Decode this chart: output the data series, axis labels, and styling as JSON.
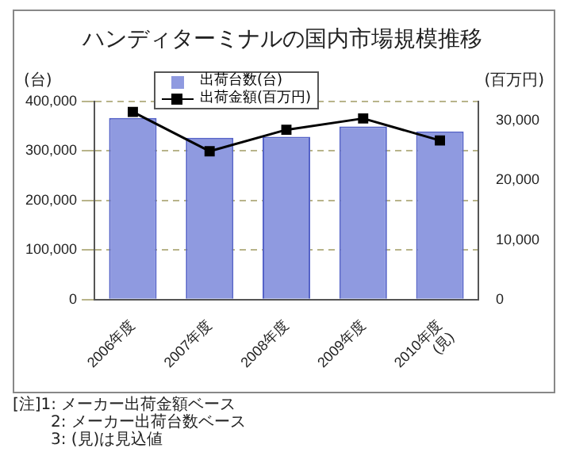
{
  "chart_data": {
    "type": "bar",
    "title": "ハンディターミナルの国内市場規模推移",
    "ylabel": "(台)",
    "y2label": "(百万円)",
    "categories": [
      "2006年度",
      "2007年度",
      "2008年度",
      "2009年度",
      "2010年度\n(見)"
    ],
    "series": [
      {
        "name": "出荷台数(台)",
        "color": "#8f9ae0",
        "values": [
          366000,
          326000,
          328000,
          349000,
          339000
        ]
      },
      {
        "name": "出荷金額(百万円)",
        "type": "line",
        "axis": "y2",
        "color": "#000000",
        "values": [
          31500,
          24900,
          28500,
          30400,
          26700
        ]
      }
    ],
    "ylim": [
      0,
      400000
    ],
    "yticks": [
      0,
      {
        "value": 100000,
        "label": "100,000"
      },
      {
        "value": 200000,
        "label": "200,000"
      },
      {
        "value": 300000,
        "label": "300,000"
      },
      {
        "value": 400000,
        "label": "400,000"
      }
    ],
    "y2lim": [
      0,
      33300
    ],
    "y2ticks": [
      0,
      {
        "value": 10000,
        "label": "10,000"
      },
      {
        "value": 20000,
        "label": "20,000"
      },
      {
        "value": 30000,
        "label": "30,000"
      }
    ],
    "grid": "y",
    "legend": "top left",
    "marker": "square",
    "line_style": "solid",
    "annotations": [
      "[注]1: メーカー出荷金額ベース",
      "2: メーカー出荷台数ベース",
      "3: (見)は見込値"
    ]
  }
}
